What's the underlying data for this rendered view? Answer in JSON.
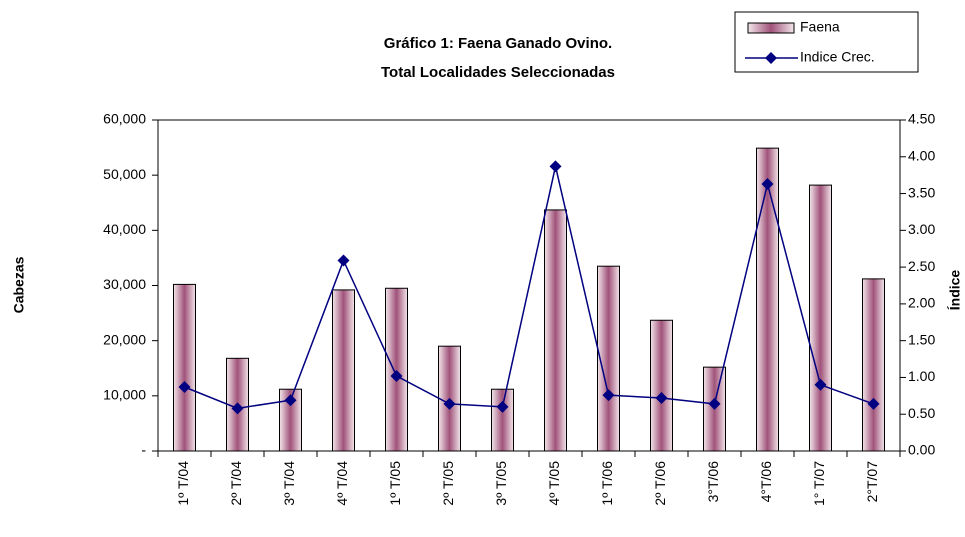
{
  "chart_data": {
    "type": "bar_line",
    "title": "Gráfico 1: Faena Ganado Ovino.",
    "subtitle": "Total Localidades Seleccionadas",
    "y_label": "Cabezas",
    "y2_label": "Índice",
    "categories": [
      "1º T/04",
      "2º T/04",
      "3º T/04",
      "4º T/04",
      "1º T/05",
      "2º T/05",
      "3º T/05",
      "4º T/05",
      "1º T/06",
      "2º T/06",
      "3°T/06",
      "4°T/06",
      "1° T/07",
      "2°T/07"
    ],
    "series": [
      {
        "name": "Faena",
        "type": "bar",
        "color": "#a0527a",
        "values": [
          30200,
          16800,
          11200,
          29200,
          29500,
          19000,
          11200,
          43700,
          33500,
          23700,
          15200,
          54900,
          48200,
          31200
        ]
      },
      {
        "name": "Indice Crec.",
        "type": "line",
        "axis": "y2",
        "color": "#000080",
        "values": [
          0.87,
          0.58,
          0.69,
          2.59,
          1.02,
          0.64,
          0.6,
          3.87,
          0.76,
          0.72,
          0.64,
          3.63,
          0.9,
          0.64
        ]
      }
    ],
    "ylim": [
      0,
      60000
    ],
    "yticks": [
      {
        "value": 0,
        "label": "-"
      },
      {
        "value": 10000,
        "label": "10,000"
      },
      {
        "value": 20000,
        "label": "20,000"
      },
      {
        "value": 30000,
        "label": "30,000"
      },
      {
        "value": 40000,
        "label": "40,000"
      },
      {
        "value": 50000,
        "label": "50,000"
      },
      {
        "value": 60000,
        "label": "60,000"
      }
    ],
    "y2lim": [
      0,
      4.5
    ],
    "y2ticks": [
      {
        "value": 0,
        "label": "0.00"
      },
      {
        "value": 0.5,
        "label": "0.50"
      },
      {
        "value": 1,
        "label": "1.00"
      },
      {
        "value": 1.5,
        "label": "1.50"
      },
      {
        "value": 2,
        "label": "2.00"
      },
      {
        "value": 2.5,
        "label": "2.50"
      },
      {
        "value": 3,
        "label": "3.00"
      },
      {
        "value": 3.5,
        "label": "3.50"
      },
      {
        "value": 4,
        "label": "4.00"
      },
      {
        "value": 4.5,
        "label": "4.50"
      }
    ],
    "legend": "top-right",
    "grid": false
  }
}
